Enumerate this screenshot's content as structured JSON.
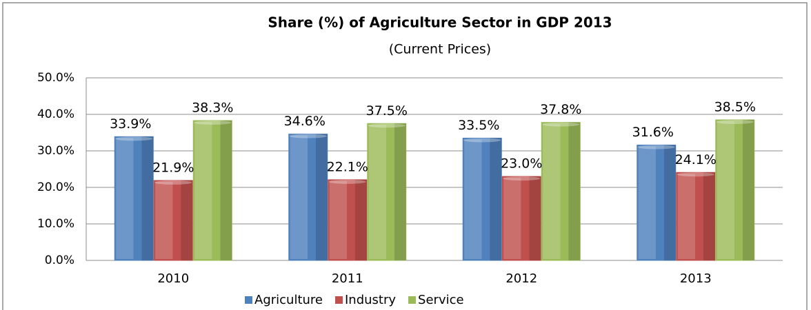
{
  "chart_data": {
    "type": "bar",
    "title": "Share (%) of Agriculture Sector in GDP 2013",
    "subtitle": "(Current Prices)",
    "categories": [
      "2010",
      "2011",
      "2012",
      "2013"
    ],
    "series": [
      {
        "name": "Agriculture",
        "color": "#4f81bd",
        "values": [
          33.9,
          34.6,
          33.5,
          31.6
        ],
        "value_labels": [
          "33.9%",
          "34.6%",
          "33.5%",
          "31.6%"
        ]
      },
      {
        "name": "Industry",
        "color": "#c0504d",
        "values": [
          21.9,
          22.1,
          23.0,
          24.1
        ],
        "value_labels": [
          "21.9%",
          "22.1%",
          "23.0%",
          "24.1%"
        ]
      },
      {
        "name": "Service",
        "color": "#9bbb59",
        "values": [
          38.3,
          37.5,
          37.8,
          38.5
        ],
        "value_labels": [
          "38.3%",
          "37.5%",
          "37.8%",
          "38.5%"
        ]
      }
    ],
    "ylim": [
      0,
      50
    ],
    "yticks": [
      {
        "value": 0,
        "label": "0.0%"
      },
      {
        "value": 10,
        "label": "10.0%"
      },
      {
        "value": 20,
        "label": "20.0%"
      },
      {
        "value": 30,
        "label": "30.0%"
      },
      {
        "value": 40,
        "label": "40.0%"
      },
      {
        "value": 50,
        "label": "50.0%"
      }
    ],
    "grid": true,
    "legend": "bottom"
  }
}
